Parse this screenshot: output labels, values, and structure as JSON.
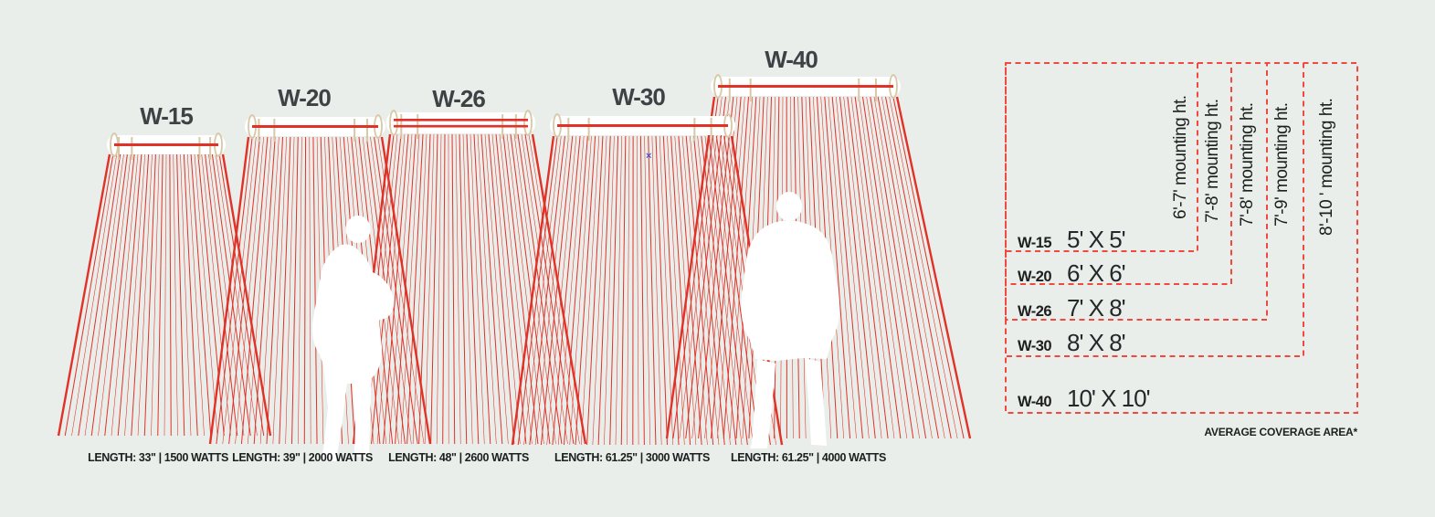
{
  "colors": {
    "background": "#e9eeea",
    "beam_red": "#e23127",
    "dash_red": "#f04940",
    "bracket_tan": "#d8c8a6",
    "title_gray": "#3f4245",
    "text_black": "#1d1e1f",
    "silhouette_white": "#ffffff",
    "cursor_blue": "#4a57c8"
  },
  "models": [
    {
      "name": "W-15",
      "spec": "LENGTH: 33\" | 1500 WATTS",
      "coverage": "5' X 5'",
      "mounting": "6'-7' mounting ht."
    },
    {
      "name": "W-20",
      "spec": "LENGTH: 39\" | 2000 WATTS",
      "coverage": "6' X 6'",
      "mounting": "7'-8' mounting ht."
    },
    {
      "name": "W-26",
      "spec": "LENGTH: 48\" | 2600 WATTS",
      "coverage": "7' X 8'",
      "mounting": "7'-8' mounting ht."
    },
    {
      "name": "W-30",
      "spec": "LENGTH: 61.25\" | 3000 WATTS",
      "coverage": "8' X 8'",
      "mounting": "7'-9' mounting ht."
    },
    {
      "name": "W-40",
      "spec": "LENGTH: 61.25\" | 4000 WATTS",
      "coverage": "10' X 10'",
      "mounting": "8'-10 ' mounting ht."
    }
  ],
  "footnote": "AVERAGE COVERAGE AREA*",
  "cursor_mark": "×"
}
